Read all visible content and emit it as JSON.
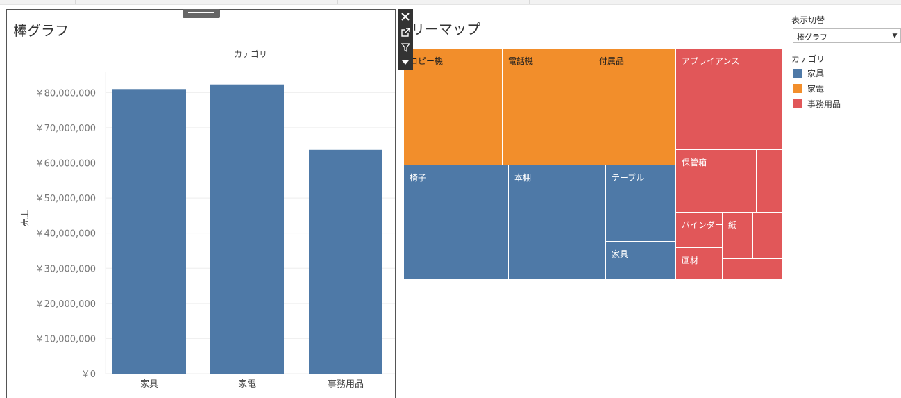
{
  "dashboard": {
    "bar_title": "棒グラフ",
    "treemap_title_visible": "リーマップ"
  },
  "colors": {
    "furniture": "#4e79a7",
    "appliances": "#f28e2b",
    "office": "#e15759"
  },
  "toolbar": {
    "icons": [
      "close-icon",
      "open-in-new-icon",
      "filter-icon",
      "dropdown-icon"
    ]
  },
  "chart_data": {
    "type": "bar",
    "title": "棒グラフ",
    "xlabel": "カテゴリ",
    "ylabel": "売上",
    "categories": [
      "家具",
      "家電",
      "事務用品"
    ],
    "values": [
      81000000,
      82300000,
      63700000
    ],
    "ylim": [
      0,
      86000000
    ],
    "yticks": [
      0,
      10000000,
      20000000,
      30000000,
      40000000,
      50000000,
      60000000,
      70000000,
      80000000
    ],
    "ytick_labels": [
      "￥0",
      "￥10,000,000",
      "￥20,000,000",
      "￥30,000,000",
      "￥40,000,000",
      "￥50,000,000",
      "￥60,000,000",
      "￥70,000,000",
      "￥80,000,000"
    ],
    "grid": true
  },
  "treemap": {
    "cells": [
      {
        "label": "コピー機",
        "category": "家電"
      },
      {
        "label": "電話機",
        "category": "家電"
      },
      {
        "label": "付属品",
        "category": "家電"
      },
      {
        "label": "",
        "category": "家電"
      },
      {
        "label": "椅子",
        "category": "家具"
      },
      {
        "label": "本棚",
        "category": "家具"
      },
      {
        "label": "テーブル",
        "category": "家具"
      },
      {
        "label": "家具",
        "category": "家具"
      },
      {
        "label": "アプライアンス",
        "category": "事務用品"
      },
      {
        "label": "保管箱",
        "category": "事務用品"
      },
      {
        "label": "",
        "category": "事務用品"
      },
      {
        "label": "バインダー",
        "category": "事務用品"
      },
      {
        "label": "紙",
        "category": "事務用品"
      },
      {
        "label": "",
        "category": "事務用品"
      },
      {
        "label": "画材",
        "category": "事務用品"
      },
      {
        "label": "",
        "category": "事務用品"
      },
      {
        "label": "",
        "category": "事務用品"
      }
    ]
  },
  "controls": {
    "switch_title": "表示切替",
    "switch_value": "棒グラフ",
    "legend_title": "カテゴリ",
    "legend_items": [
      "家具",
      "家電",
      "事務用品"
    ]
  }
}
